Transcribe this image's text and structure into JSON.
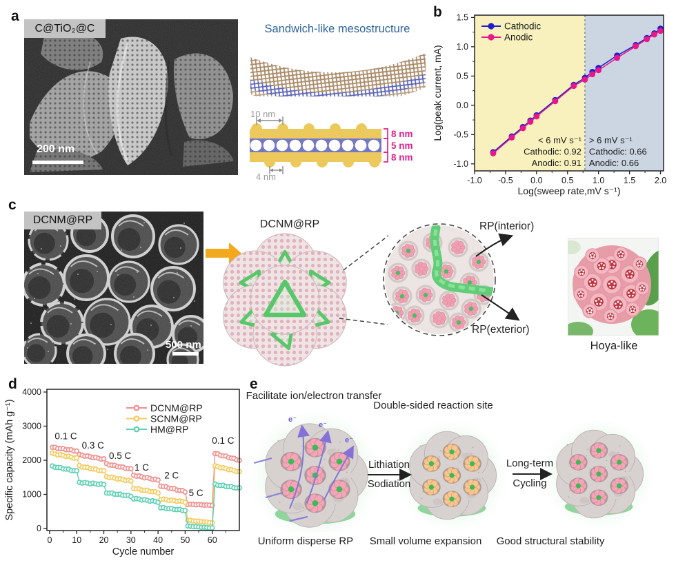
{
  "panels": {
    "a": {
      "label": "a",
      "sem_label": "C@TiO₂@C",
      "scale_bar": "200 nm",
      "schematic_title": "Sandwich-like mesostructure",
      "dim_10": "10 nm",
      "dim_4": "4 nm",
      "dim_8_top": "8 nm",
      "dim_5": "5 nm",
      "dim_8_bottom": "8 nm"
    },
    "b": {
      "label": "b"
    },
    "c": {
      "label": "c",
      "sem_label": "DCNM@RP",
      "scale_bar": "500 nm",
      "cluster_title": "DCNM@RP",
      "rp_interior": "RP(interior)",
      "rp_exterior": "RP(exterior)",
      "hoya_caption": "Hoya-like"
    },
    "d": {
      "label": "d"
    },
    "e": {
      "label": "e",
      "caption_left_top": "Facilitate ion/electron transfer",
      "caption_mid_top": "Double-sided reaction site",
      "arrow1_top": "Lithiation",
      "arrow1_bottom": "Sodiation",
      "arrow2_top": "Long-term",
      "arrow2_bottom": "Cycling",
      "caption_left_bottom": "Uniform disperse RP",
      "caption_mid_bottom": "Small volume expansion",
      "caption_right_bottom": "Good structural stability",
      "electron_label": "e⁻"
    }
  },
  "chart_data": [
    {
      "id": "kinetics",
      "type": "line",
      "xlabel": "Log(sweep rate,mV s⁻¹)",
      "ylabel": "Log(peak current, mA)",
      "xlim": [
        -1.0,
        2.05
      ],
      "ylim": [
        -1.12,
        1.54
      ],
      "xticks": [
        -1.0,
        -0.5,
        0.0,
        0.5,
        1.0,
        1.5,
        2.0
      ],
      "yticks": [
        -1.0,
        -0.5,
        0.0,
        0.5,
        1.0,
        1.5
      ],
      "divider_x": 0.78,
      "regions": [
        {
          "from": -1.0,
          "to": 0.78,
          "fill": "#f8f1bd",
          "label_lines": [
            "< 6 mV s⁻¹",
            "Cathodic: 0.92",
            "Anodic: 0.91"
          ]
        },
        {
          "from": 0.78,
          "to": 2.05,
          "fill": "#ccd6e2",
          "label_lines": [
            "> 6 mV s⁻¹",
            "Cathodic: 0.66",
            "Anodic: 0.66"
          ]
        }
      ],
      "x": [
        -0.7,
        -0.4,
        -0.22,
        -0.1,
        0.0,
        0.3,
        0.6,
        0.78,
        0.9,
        1.0,
        1.3,
        1.6,
        1.78,
        1.9,
        2.0
      ],
      "series": [
        {
          "name": "Cathodic",
          "color": "#1f1fc8",
          "y": [
            -0.8,
            -0.53,
            -0.37,
            -0.26,
            -0.17,
            0.09,
            0.35,
            0.47,
            0.57,
            0.64,
            0.85,
            1.03,
            1.15,
            1.23,
            1.31
          ]
        },
        {
          "name": "Anodic",
          "color": "#e8188c",
          "y": [
            -0.82,
            -0.55,
            -0.39,
            -0.28,
            -0.19,
            0.07,
            0.33,
            0.44,
            0.53,
            0.6,
            0.81,
            1.01,
            1.13,
            1.21,
            1.27
          ]
        }
      ],
      "legend_position": "top-left"
    },
    {
      "id": "rate",
      "type": "scatter",
      "xlabel": "Cycle number",
      "ylabel": "Specific capacity (mAh g⁻¹)",
      "xlim": [
        -1,
        70
      ],
      "ylim": [
        -60,
        4080
      ],
      "xticks": [
        0,
        10,
        20,
        30,
        40,
        50,
        60
      ],
      "yticks": [
        0,
        1000,
        2000,
        3000,
        4000
      ],
      "cycles_per_block": 10,
      "rate_labels": [
        {
          "text": "0.1 C",
          "x": 6,
          "y": 2620
        },
        {
          "text": "0.3 C",
          "x": 16,
          "y": 2340
        },
        {
          "text": "0.5 C",
          "x": 26,
          "y": 2040
        },
        {
          "text": "1 C",
          "x": 34,
          "y": 1700
        },
        {
          "text": "2 C",
          "x": 45,
          "y": 1460
        },
        {
          "text": "5 C",
          "x": 54,
          "y": 950
        },
        {
          "text": "0.1 C",
          "x": 64,
          "y": 2480
        }
      ],
      "series": [
        {
          "name": "DCNM@RP",
          "color": "#f0908e",
          "blocks": [
            [
              2380,
              2270
            ],
            [
              2160,
              2030
            ],
            [
              1890,
              1740
            ],
            [
              1560,
              1420
            ],
            [
              1250,
              1080
            ],
            [
              710,
              680
            ],
            [
              2200,
              2000
            ]
          ]
        },
        {
          "name": "SCNM@RP",
          "color": "#f4cb5f",
          "blocks": [
            [
              2200,
              2060
            ],
            [
              1830,
              1680
            ],
            [
              1520,
              1390
            ],
            [
              1180,
              1050
            ],
            [
              860,
              780
            ],
            [
              240,
              170
            ],
            [
              1830,
              1660
            ]
          ]
        },
        {
          "name": "HM@RP",
          "color": "#5fd0b4",
          "blocks": [
            [
              1820,
              1680
            ],
            [
              1350,
              1290
            ],
            [
              1050,
              950
            ],
            [
              880,
              780
            ],
            [
              610,
              530
            ],
            [
              70,
              15
            ],
            [
              1290,
              1180
            ]
          ]
        }
      ],
      "legend_position": "upper-right"
    }
  ]
}
